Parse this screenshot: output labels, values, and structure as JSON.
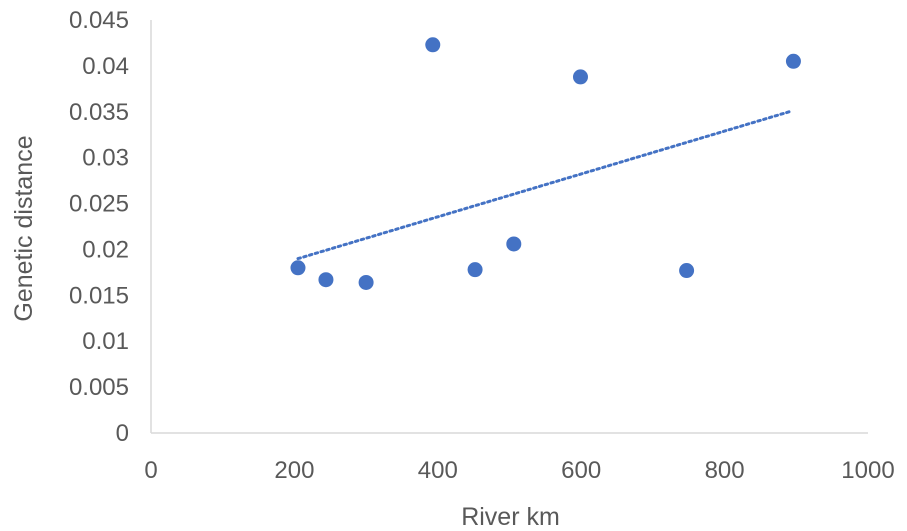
{
  "chart_data": {
    "type": "scatter",
    "title": "",
    "xlabel": "River km",
    "ylabel": "Genetic distance",
    "xlim": [
      0,
      1000
    ],
    "ylim": [
      0,
      0.045
    ],
    "x_ticks": [
      0,
      200,
      400,
      600,
      800,
      1000
    ],
    "x_tick_labels": [
      "0",
      "200",
      "400",
      "600",
      "800",
      "1000"
    ],
    "y_ticks": [
      0,
      0.005,
      0.01,
      0.015,
      0.02,
      0.025,
      0.03,
      0.035,
      0.04,
      0.045
    ],
    "y_tick_labels": [
      "0",
      "0.005",
      "0.01",
      "0.015",
      "0.02",
      "0.025",
      "0.03",
      "0.035",
      "0.04",
      "0.045"
    ],
    "grid": false,
    "legend": "none",
    "series": [
      {
        "x": [
          205,
          244,
          300,
          393,
          452,
          506,
          599,
          747,
          896
        ],
        "y": [
          0.018,
          0.0167,
          0.0164,
          0.0423,
          0.0178,
          0.0206,
          0.0388,
          0.0177,
          0.0405
        ],
        "color": "#4472c4"
      }
    ],
    "trendline": {
      "type": "linear",
      "style": "dotted",
      "color": "#4472c4",
      "x": [
        205,
        890
      ],
      "y": [
        0.019,
        0.035
      ]
    }
  }
}
